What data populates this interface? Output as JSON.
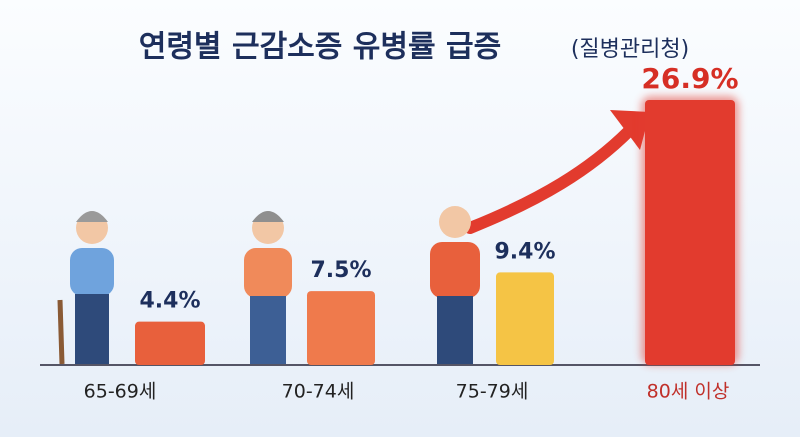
{
  "chart_data": {
    "type": "bar",
    "title": "연령별 근감소증 유병률 급증",
    "subtitle": "(질병관리청)",
    "categories": [
      "65-69세",
      "70-74세",
      "75-79세",
      "80세 이상"
    ],
    "values": [
      4.4,
      7.5,
      9.4,
      26.9
    ],
    "value_labels": [
      "4.4%",
      "7.5%",
      "9.4%",
      "26.9%"
    ],
    "colors": [
      "#e8603c",
      "#ef7a4c",
      "#f5c445",
      "#e23b2e"
    ]
  }
}
